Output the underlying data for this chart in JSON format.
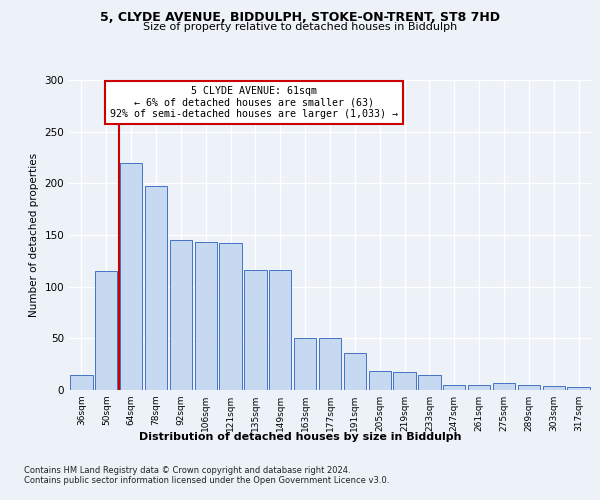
{
  "title_line1": "5, CLYDE AVENUE, BIDDULPH, STOKE-ON-TRENT, ST8 7HD",
  "title_line2": "Size of property relative to detached houses in Biddulph",
  "xlabel": "Distribution of detached houses by size in Biddulph",
  "ylabel": "Number of detached properties",
  "categories": [
    "36sqm",
    "50sqm",
    "64sqm",
    "78sqm",
    "92sqm",
    "106sqm",
    "121sqm",
    "135sqm",
    "149sqm",
    "163sqm",
    "177sqm",
    "191sqm",
    "205sqm",
    "219sqm",
    "233sqm",
    "247sqm",
    "261sqm",
    "275sqm",
    "289sqm",
    "303sqm",
    "317sqm"
  ],
  "values": [
    15,
    115,
    220,
    197,
    145,
    143,
    142,
    116,
    116,
    50,
    50,
    36,
    18,
    17,
    15,
    5,
    5,
    7,
    5,
    4,
    3
  ],
  "bar_color": "#c6d9f0",
  "bar_edge_color": "#4472c4",
  "red_line_x": 1.5,
  "annotation_title": "5 CLYDE AVENUE: 61sqm",
  "annotation_line1": "← 6% of detached houses are smaller (63)",
  "annotation_line2": "92% of semi-detached houses are larger (1,033) →",
  "vline_color": "#cc0000",
  "ylim": [
    0,
    300
  ],
  "yticks": [
    0,
    50,
    100,
    150,
    200,
    250,
    300
  ],
  "footnote1": "Contains HM Land Registry data © Crown copyright and database right 2024.",
  "footnote2": "Contains public sector information licensed under the Open Government Licence v3.0.",
  "fig_bg_color": "#edf2f9",
  "plot_bg_color": "#edf2f9"
}
